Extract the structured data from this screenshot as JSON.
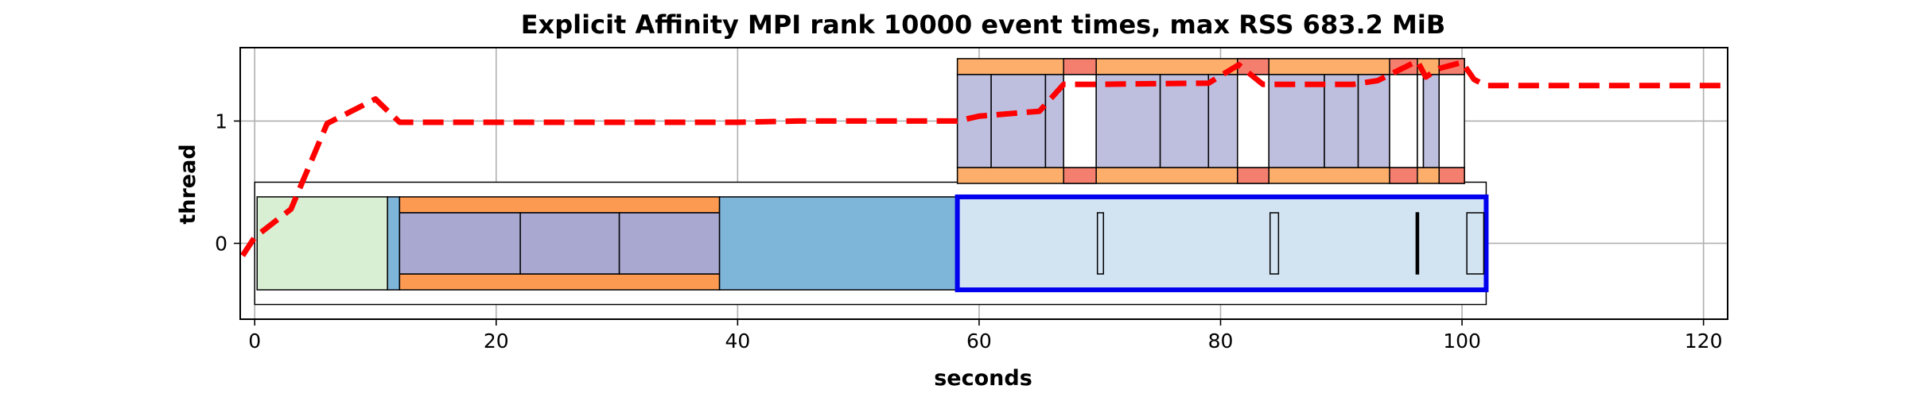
{
  "chart_data": {
    "type": "timeline",
    "title": "Explicit Affinity MPI rank 10000 event times, max RSS 683.2 MiB",
    "xlabel": "seconds",
    "ylabel": "thread",
    "xlim": [
      -1.2,
      122
    ],
    "ylim": [
      -0.62,
      1.6
    ],
    "xticks": [
      0,
      20,
      40,
      60,
      80,
      100,
      120
    ],
    "yticks": [
      0,
      1
    ],
    "grid": true,
    "colors": {
      "outline": "#000000",
      "highlight": "#0000ee",
      "memory_line": "#ff0000"
    },
    "thread_boxes": [
      {
        "x0": 0,
        "x1": 102,
        "y0": -0.5,
        "y1": 0.5,
        "fill": "#ffffff",
        "stroke": "#000000",
        "lw": 1.5
      },
      {
        "x0": 0.2,
        "x1": 6,
        "y0": -0.25,
        "y1": 0.25,
        "fill": "#f2f2f2",
        "stroke": "#000000",
        "lw": 1.5
      },
      {
        "x0": 0.2,
        "x1": 11,
        "y0": -0.38,
        "y1": 0.38,
        "fill": "#d8efd3",
        "stroke": "#000000",
        "lw": 1.5
      },
      {
        "x0": 6,
        "x1": 11,
        "y0": 0.25,
        "y1": 0.25,
        "fill": "none",
        "stroke": "none",
        "lw": 0
      },
      {
        "x0": 11,
        "x1": 12,
        "y0": -0.38,
        "y1": 0.38,
        "fill": "#7eb6da",
        "stroke": "#000000",
        "lw": 1.5
      },
      {
        "x0": 12,
        "x1": 38.5,
        "y0": 0.25,
        "y1": 0.38,
        "fill": "#fd9a52",
        "stroke": "#000000",
        "lw": 1.5
      },
      {
        "x0": 12,
        "x1": 38.5,
        "y0": -0.38,
        "y1": -0.25,
        "fill": "#fd9a52",
        "stroke": "#000000",
        "lw": 1.5
      },
      {
        "x0": 12,
        "x1": 22,
        "y0": -0.25,
        "y1": 0.25,
        "fill": "#a9a8d0",
        "stroke": "#000000",
        "lw": 1.5
      },
      {
        "x0": 22,
        "x1": 30.2,
        "y0": -0.25,
        "y1": 0.25,
        "fill": "#a9a8d0",
        "stroke": "#000000",
        "lw": 1.5
      },
      {
        "x0": 30.2,
        "x1": 38.5,
        "y0": -0.25,
        "y1": 0.25,
        "fill": "#a9a8d0",
        "stroke": "#000000",
        "lw": 1.5
      },
      {
        "x0": 38.5,
        "x1": 58.2,
        "y0": -0.38,
        "y1": 0.38,
        "fill": "#7eb6da",
        "stroke": "#000000",
        "lw": 1.5
      },
      {
        "x0": 58.2,
        "x1": 102,
        "y0": -0.38,
        "y1": 0.38,
        "fill": "#d2e3f2",
        "stroke": "#0000ee",
        "lw": 6
      },
      {
        "x0": 69.8,
        "x1": 70.3,
        "y0": -0.25,
        "y1": 0.25,
        "fill": "#d2e3f2",
        "stroke": "#000000",
        "lw": 1.5
      },
      {
        "x0": 84.1,
        "x1": 84.8,
        "y0": -0.25,
        "y1": 0.25,
        "fill": "#d2e3f2",
        "stroke": "#000000",
        "lw": 1.5
      },
      {
        "x0": 96.2,
        "x1": 96.4,
        "y0": -0.25,
        "y1": 0.25,
        "fill": "#000000",
        "stroke": "#000000",
        "lw": 1.5
      },
      {
        "x0": 100.4,
        "x1": 101.8,
        "y0": -0.25,
        "y1": 0.25,
        "fill": "#d2e3f2",
        "stroke": "#000000",
        "lw": 1.5
      },
      {
        "x0": 58.2,
        "x1": 100.2,
        "y0": 1.38,
        "y1": 1.51,
        "fill": "#fdae6b",
        "stroke": "#000000",
        "lw": 1.5
      },
      {
        "x0": 58.2,
        "x1": 100.2,
        "y0": 0.49,
        "y1": 0.62,
        "fill": "#fdae6b",
        "stroke": "#000000",
        "lw": 1.5
      },
      {
        "x0": 67.0,
        "x1": 69.7,
        "y0": 1.38,
        "y1": 1.51,
        "fill": "#f57f6e",
        "stroke": "#000000",
        "lw": 1.5
      },
      {
        "x0": 67.0,
        "x1": 69.7,
        "y0": 0.49,
        "y1": 0.62,
        "fill": "#f57f6e",
        "stroke": "#000000",
        "lw": 1.5
      },
      {
        "x0": 81.4,
        "x1": 84.0,
        "y0": 1.38,
        "y1": 1.51,
        "fill": "#f57f6e",
        "stroke": "#000000",
        "lw": 1.5
      },
      {
        "x0": 81.4,
        "x1": 84.0,
        "y0": 0.49,
        "y1": 0.62,
        "fill": "#f57f6e",
        "stroke": "#000000",
        "lw": 1.5
      },
      {
        "x0": 94.0,
        "x1": 96.3,
        "y0": 1.38,
        "y1": 1.51,
        "fill": "#f57f6e",
        "stroke": "#000000",
        "lw": 1.5
      },
      {
        "x0": 94.0,
        "x1": 96.3,
        "y0": 0.49,
        "y1": 0.62,
        "fill": "#f57f6e",
        "stroke": "#000000",
        "lw": 1.5
      },
      {
        "x0": 98.1,
        "x1": 100.2,
        "y0": 1.38,
        "y1": 1.51,
        "fill": "#f57f6e",
        "stroke": "#000000",
        "lw": 1.5
      },
      {
        "x0": 98.1,
        "x1": 100.2,
        "y0": 0.49,
        "y1": 0.62,
        "fill": "#f57f6e",
        "stroke": "#000000",
        "lw": 1.5
      },
      {
        "x0": 58.2,
        "x1": 61.0,
        "y0": 0.62,
        "y1": 1.38,
        "fill": "#bebedf",
        "stroke": "#000000",
        "lw": 1.5
      },
      {
        "x0": 61.0,
        "x1": 65.5,
        "y0": 0.62,
        "y1": 1.38,
        "fill": "#bebedf",
        "stroke": "#000000",
        "lw": 1.5
      },
      {
        "x0": 65.5,
        "x1": 67.0,
        "y0": 0.62,
        "y1": 1.38,
        "fill": "#bebedf",
        "stroke": "#000000",
        "lw": 1.5
      },
      {
        "x0": 67.0,
        "x1": 69.7,
        "y0": 0.62,
        "y1": 1.38,
        "fill": "#ffffff",
        "stroke": "#000000",
        "lw": 1.5
      },
      {
        "x0": 69.7,
        "x1": 75.0,
        "y0": 0.62,
        "y1": 1.38,
        "fill": "#bebedf",
        "stroke": "#000000",
        "lw": 1.5
      },
      {
        "x0": 75.0,
        "x1": 79.0,
        "y0": 0.62,
        "y1": 1.38,
        "fill": "#bebedf",
        "stroke": "#000000",
        "lw": 1.5
      },
      {
        "x0": 79.0,
        "x1": 81.4,
        "y0": 0.62,
        "y1": 1.38,
        "fill": "#bebedf",
        "stroke": "#000000",
        "lw": 1.5
      },
      {
        "x0": 81.4,
        "x1": 84.0,
        "y0": 0.62,
        "y1": 1.38,
        "fill": "#ffffff",
        "stroke": "#000000",
        "lw": 1.5
      },
      {
        "x0": 84.0,
        "x1": 88.6,
        "y0": 0.62,
        "y1": 1.38,
        "fill": "#bebedf",
        "stroke": "#000000",
        "lw": 1.5
      },
      {
        "x0": 88.6,
        "x1": 91.4,
        "y0": 0.62,
        "y1": 1.38,
        "fill": "#bebedf",
        "stroke": "#000000",
        "lw": 1.5
      },
      {
        "x0": 91.4,
        "x1": 94.0,
        "y0": 0.62,
        "y1": 1.38,
        "fill": "#bebedf",
        "stroke": "#000000",
        "lw": 1.5
      },
      {
        "x0": 94.0,
        "x1": 96.3,
        "y0": 0.62,
        "y1": 1.38,
        "fill": "#ffffff",
        "stroke": "#000000",
        "lw": 1.5
      },
      {
        "x0": 96.3,
        "x1": 96.8,
        "y0": 0.62,
        "y1": 1.38,
        "fill": "#ffffff",
        "stroke": "#000000",
        "lw": 1.5
      },
      {
        "x0": 96.8,
        "x1": 98.1,
        "y0": 0.62,
        "y1": 1.38,
        "fill": "#bebedf",
        "stroke": "#000000",
        "lw": 1.5
      },
      {
        "x0": 98.1,
        "x1": 100.2,
        "y0": 0.62,
        "y1": 1.38,
        "fill": "#ffffff",
        "stroke": "#000000",
        "lw": 1.5
      }
    ],
    "memory_series": {
      "x": [
        -1,
        0,
        3,
        6,
        10,
        12,
        20,
        40,
        45,
        58.2,
        60,
        65,
        67,
        69.7,
        79,
        81.5,
        83.5,
        84,
        91,
        93,
        96.3,
        97,
        98.1,
        100,
        101,
        102,
        122
      ],
      "y": [
        -0.1,
        0.05,
        0.28,
        0.98,
        1.18,
        0.99,
        0.99,
        0.99,
        1.0,
        1.0,
        1.04,
        1.08,
        1.3,
        1.3,
        1.31,
        1.46,
        1.3,
        1.3,
        1.3,
        1.33,
        1.49,
        1.36,
        1.43,
        1.48,
        1.34,
        1.29,
        1.29
      ]
    }
  }
}
